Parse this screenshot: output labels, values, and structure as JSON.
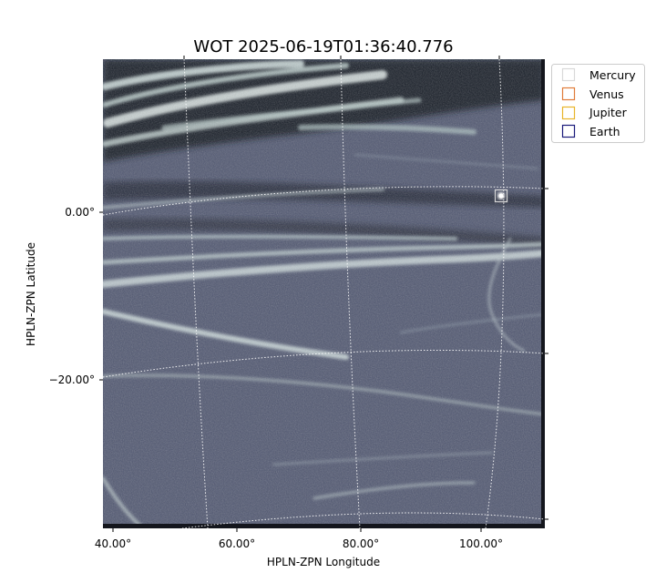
{
  "chart_data": {
    "type": "image",
    "title": "WOT 2025-06-19T01:36:40.776",
    "xlabel": "HPLN-ZPN Longitude",
    "ylabel": "HPLN-ZPN Latitude",
    "x_ticks": [
      {
        "value": 40,
        "label": "40.00°"
      },
      {
        "value": 60,
        "label": "60.00°"
      },
      {
        "value": 80,
        "label": "80.00°"
      },
      {
        "value": 100,
        "label": "100.00°"
      }
    ],
    "y_ticks": [
      {
        "value": 0,
        "label": "0.00°"
      },
      {
        "value": -20,
        "label": "−20.00°"
      }
    ],
    "grid": true,
    "legend": {
      "placement": "outside-top-right",
      "entries": [
        {
          "name": "Mercury",
          "color": "#d9d9d9"
        },
        {
          "name": "Venus",
          "color": "#e07b39"
        },
        {
          "name": "Jupiter",
          "color": "#e8b42a"
        },
        {
          "name": "Earth",
          "color": "#1a1a7a"
        }
      ]
    },
    "planet_markers": [
      {
        "name": "Mercury",
        "lon": 103,
        "lat": 1.7
      }
    ],
    "background_color": "#4f5670"
  }
}
